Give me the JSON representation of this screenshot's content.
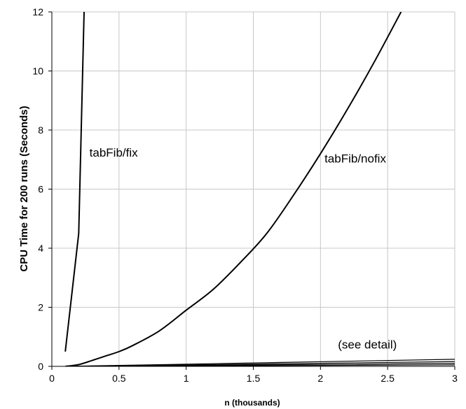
{
  "chart_data": {
    "type": "line",
    "xlabel": "n (thousands)",
    "ylabel": "CPU Time for 200 runs (Seconds)",
    "xlim": [
      0,
      3
    ],
    "ylim": [
      0,
      12
    ],
    "xticks": [
      0,
      0.5,
      1,
      1.5,
      2,
      2.5,
      3
    ],
    "yticks": [
      0,
      2,
      4,
      6,
      8,
      10,
      12
    ],
    "x_tick_labels": [
      "0",
      "0.5",
      "1",
      "1.5",
      "2",
      "2.5",
      "3"
    ],
    "y_tick_labels": [
      "0",
      "2",
      "4",
      "6",
      "8",
      "10",
      "12"
    ],
    "grid": true,
    "legend": "none",
    "series": [
      {
        "name": "tabFib/fix",
        "x": [
          0.1,
          0.2,
          0.24
        ],
        "y": [
          0.5,
          4.5,
          12
        ]
      },
      {
        "name": "tabFib/nofix",
        "x": [
          0.1,
          0.2,
          0.3,
          0.4,
          0.5,
          0.6,
          0.8,
          1.0,
          1.2,
          1.4,
          1.6,
          1.8,
          2.0,
          2.2,
          2.4,
          2.6
        ],
        "y": [
          0.0,
          0.06,
          0.2,
          0.35,
          0.5,
          0.7,
          1.2,
          1.9,
          2.6,
          3.5,
          4.5,
          5.8,
          7.2,
          8.7,
          10.3,
          12.0
        ]
      },
      {
        "name": "",
        "x": [
          0.1,
          3.0
        ],
        "y": [
          0.0,
          0.24
        ]
      },
      {
        "name": "",
        "x": [
          0.1,
          3.0
        ],
        "y": [
          0.0,
          0.16
        ]
      },
      {
        "name": "",
        "x": [
          0.1,
          3.0
        ],
        "y": [
          0.0,
          0.1
        ]
      },
      {
        "name": "",
        "x": [
          0.1,
          3.0
        ],
        "y": [
          0.0,
          0.05
        ]
      }
    ],
    "annotations": [
      {
        "text": "tabFib/fix",
        "x": 0.28,
        "y": 7.1
      },
      {
        "text": "tabFib/nofix",
        "x": 2.03,
        "y": 6.9
      },
      {
        "text": "(see detail)",
        "x": 2.13,
        "y": 0.6
      }
    ]
  }
}
